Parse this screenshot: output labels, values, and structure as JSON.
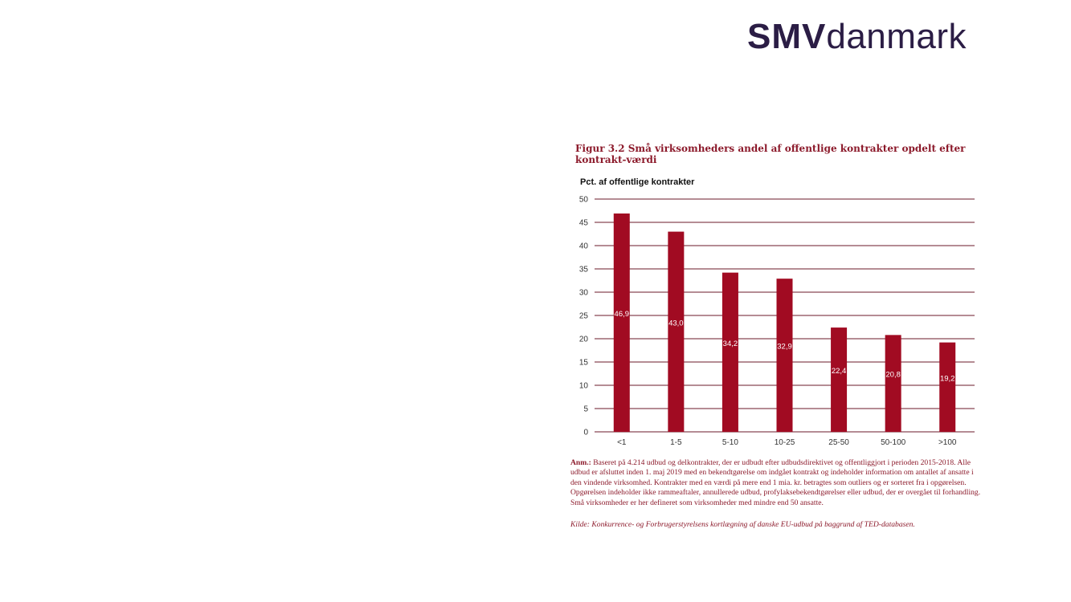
{
  "logo": {
    "part1": "SMV",
    "part2": "danmark"
  },
  "figure": {
    "title": "Figur 3.2 Små virksomheders andel af offentlige kontrakter opdelt efter kontrakt-værdi",
    "note_label": "Anm.:",
    "note_text": "Baseret på 4.214 udbud og delkontrakter, der er udbudt efter udbudsdirektivet og offentliggjort i perioden 2015-2018. Alle udbud er afsluttet inden 1. maj 2019 med en bekendtgørelse om indgået kontrakt og indeholder information om antallet af ansatte i den vindende virksomhed. Kontrakter med en værdi på mere end 1 mia. kr. betragtes som outliers og er sorteret fra i opgørelsen. Opgørelsen indeholder ikke rammeaftaler, annullerede udbud, profylaksebekendtgørelser eller udbud, der er overgået til forhandling. Små virksomheder er her defineret som virksomheder med mindre end 50 ansatte.",
    "source": "Kilde: Konkurrence- og Forbrugerstyrelsens kortlægning af danske EU-udbud på baggrund af TED-databasen."
  },
  "chart_data": {
    "type": "bar",
    "ylabel": "Pct. af offentlige kontrakter",
    "xlabel": "",
    "categories": [
      "<1",
      "1-5",
      "5-10",
      "10-25",
      "25-50",
      "50-100",
      ">100"
    ],
    "values": [
      46.9,
      43.0,
      34.2,
      32.9,
      22.4,
      20.8,
      19.2
    ],
    "data_labels": [
      "46,9",
      "43,0",
      "34,2",
      "32,9",
      "22,4",
      "20,8",
      "19,2"
    ],
    "y_ticks": [
      0,
      5,
      10,
      15,
      20,
      25,
      30,
      35,
      40,
      45,
      50
    ],
    "ylim": [
      0,
      50
    ],
    "grid": true,
    "legend": "none",
    "bar_color": "#a10b22",
    "grid_color": "#6b1a28"
  }
}
